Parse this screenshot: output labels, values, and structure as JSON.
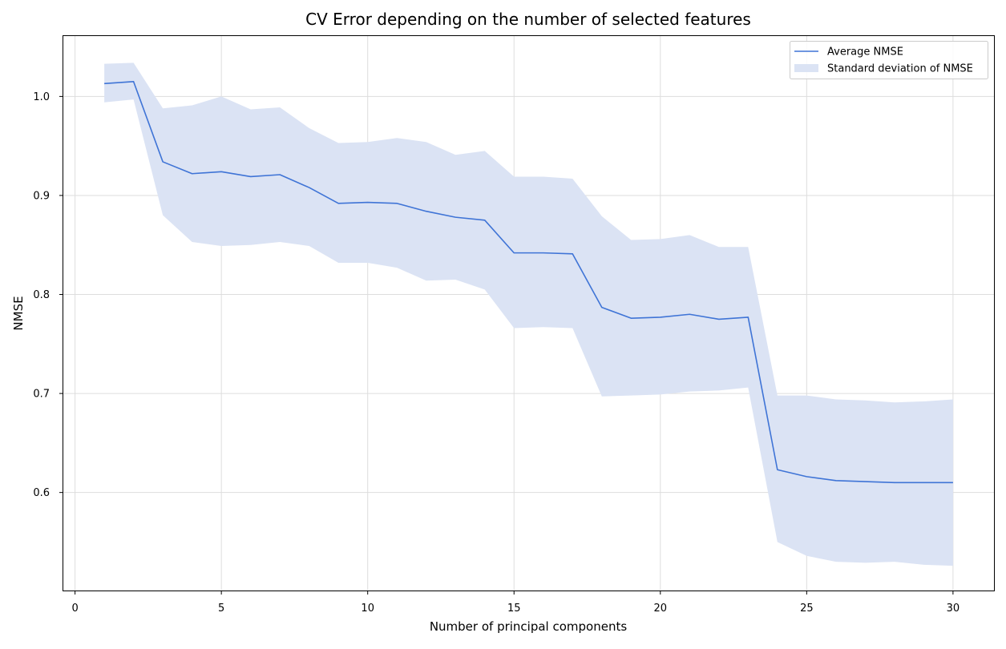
{
  "chart_data": {
    "type": "line",
    "title": "CV Error depending on the number of selected features",
    "xlabel": "Number of principal components",
    "ylabel": "NMSE",
    "xlim": [
      -0.4,
      31.4
    ],
    "ylim": [
      0.501,
      1.061
    ],
    "xticks": [
      0,
      5,
      10,
      15,
      20,
      25,
      30
    ],
    "yticks": [
      0.6,
      0.7,
      0.8,
      0.9,
      1.0
    ],
    "xtick_labels": [
      "0",
      "5",
      "10",
      "15",
      "20",
      "25",
      "30"
    ],
    "ytick_labels": [
      "0.6",
      "0.7",
      "0.8",
      "0.9",
      "1.0"
    ],
    "grid": true,
    "legend_position": "top-right",
    "x": [
      1,
      2,
      3,
      4,
      5,
      6,
      7,
      8,
      9,
      10,
      11,
      12,
      13,
      14,
      15,
      16,
      17,
      18,
      19,
      20,
      21,
      22,
      23,
      24,
      25,
      26,
      27,
      28,
      29,
      30
    ],
    "series": [
      {
        "name": "Average NMSE",
        "kind": "line",
        "color": "#3f74d6",
        "values": [
          1.013,
          1.015,
          0.934,
          0.922,
          0.924,
          0.919,
          0.921,
          0.908,
          0.892,
          0.893,
          0.892,
          0.884,
          0.878,
          0.875,
          0.842,
          0.842,
          0.841,
          0.787,
          0.776,
          0.777,
          0.78,
          0.775,
          0.777,
          0.623,
          0.616,
          0.612,
          0.611,
          0.61,
          0.61,
          0.61
        ]
      },
      {
        "name": "Standard deviation of NMSE",
        "kind": "band",
        "color": "#dbe3f4",
        "upper": [
          1.033,
          1.034,
          0.988,
          0.991,
          1.0,
          0.987,
          0.989,
          0.968,
          0.953,
          0.954,
          0.958,
          0.954,
          0.941,
          0.945,
          0.919,
          0.919,
          0.917,
          0.879,
          0.855,
          0.856,
          0.86,
          0.848,
          0.848,
          0.698,
          0.698,
          0.694,
          0.693,
          0.691,
          0.692,
          0.694
        ],
        "lower": [
          0.994,
          0.997,
          0.88,
          0.853,
          0.849,
          0.85,
          0.853,
          0.849,
          0.832,
          0.832,
          0.827,
          0.814,
          0.815,
          0.805,
          0.766,
          0.767,
          0.766,
          0.697,
          0.698,
          0.699,
          0.702,
          0.703,
          0.706,
          0.55,
          0.536,
          0.53,
          0.529,
          0.53,
          0.527,
          0.526
        ]
      }
    ]
  }
}
